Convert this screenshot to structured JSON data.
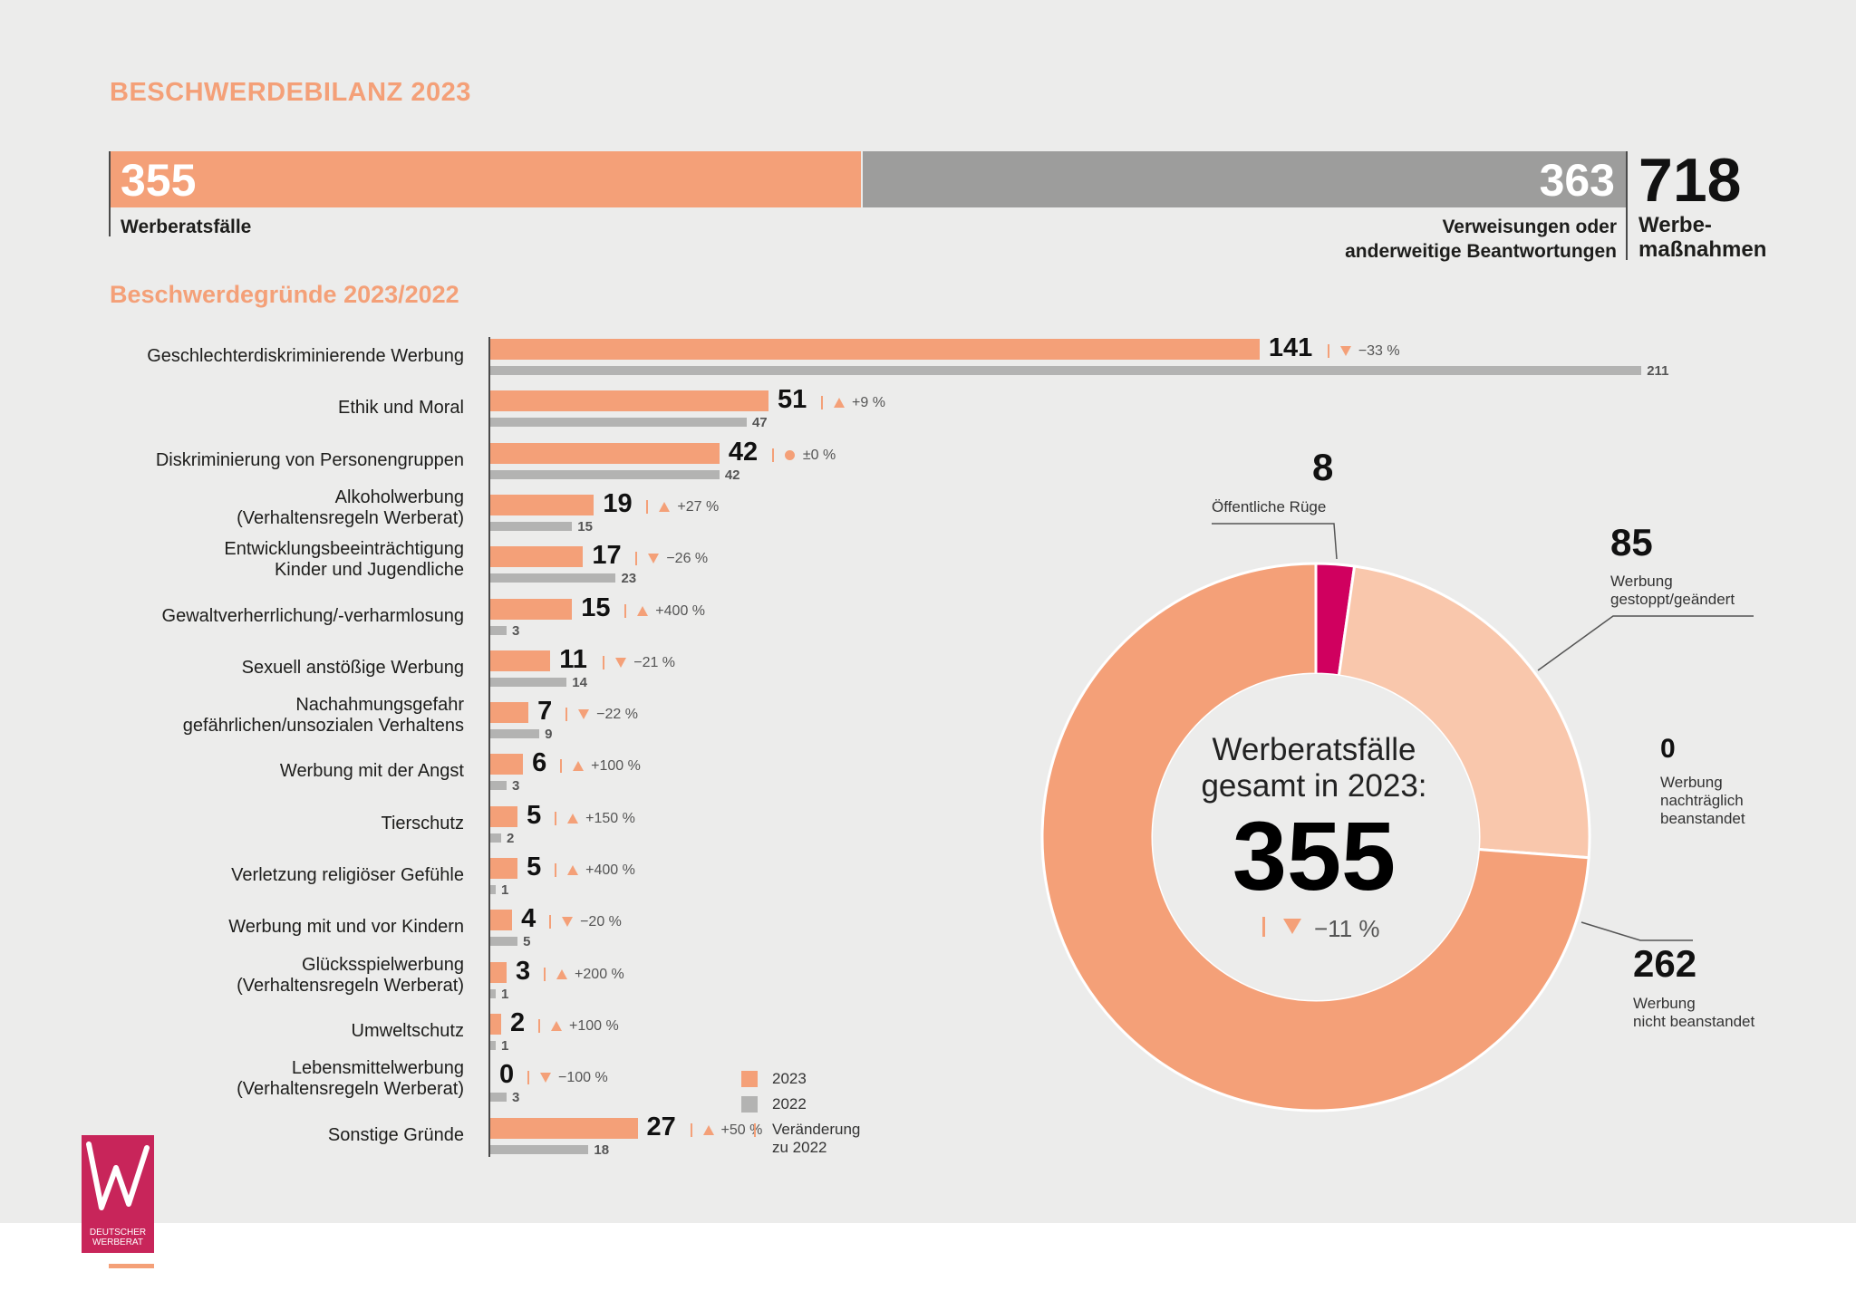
{
  "title": "BESCHWERDEBILANZ 2023",
  "totals": {
    "werberat_value": "355",
    "werberat_label": "Werberatsfälle",
    "verweisungen_value": "363",
    "verweisungen_label": "Verweisungen oder\nanderweitige Beantwortungen",
    "total_value": "718",
    "total_label": "Werbe-\nmaßnahmen"
  },
  "colors": {
    "accent": "#f4a078",
    "grey": "#b3b3b2",
    "dark_grey": "#9d9d9c",
    "magenta": "#d0005f",
    "light_orange": "#f9c7ac"
  },
  "chart_data": [
    {
      "type": "bar",
      "title": "Beschwerdegründe 2023/2022",
      "categories": [
        "Geschlechterdiskriminierende Werbung",
        "Ethik und Moral",
        "Diskriminierung von Personengruppen",
        "Alkoholwerbung\n(Verhaltensregeln Werberat)",
        "Entwicklungsbeeinträchtigung\nKinder und Jugendliche",
        "Gewaltverherrlichung/-verharmlosung",
        "Sexuell anstößige Werbung",
        "Nachahmungsgefahr\ngefährlichen/unsozialen Verhaltens",
        "Werbung mit der Angst",
        "Tierschutz",
        "Verletzung religiöser Gefühle",
        "Werbung mit und vor Kindern",
        "Glücksspielwerbung\n(Verhaltensregeln Werberat)",
        "Umweltschutz",
        "Lebensmittelwerbung\n(Verhaltensregeln Werberat)",
        "Sonstige Gründe"
      ],
      "series": [
        {
          "name": "2023",
          "values": [
            141,
            51,
            42,
            19,
            17,
            15,
            11,
            7,
            6,
            5,
            5,
            4,
            3,
            2,
            0,
            27
          ]
        },
        {
          "name": "2022",
          "values": [
            211,
            47,
            42,
            15,
            23,
            3,
            14,
            9,
            3,
            2,
            1,
            5,
            1,
            1,
            3,
            18
          ]
        }
      ],
      "changes": [
        "−33 %",
        "+9 %",
        "±0 %",
        "+27 %",
        "−26 %",
        "+400 %",
        "−21 %",
        "−22 %",
        "+100 %",
        "+150 %",
        "+400 %",
        "−20 %",
        "+200 %",
        "+100 %",
        "−100 %",
        "+50 %"
      ],
      "change_dirs": [
        "down",
        "up",
        "flat",
        "up",
        "down",
        "up",
        "down",
        "down",
        "up",
        "up",
        "up",
        "down",
        "up",
        "up",
        "down",
        "up"
      ],
      "legend": [
        "2023",
        "2022",
        "Veränderung\nzu 2022"
      ]
    },
    {
      "type": "pie",
      "title": "Werberatsfälle\ngesamt in 2023:",
      "total": 355,
      "total_change": "−11 %",
      "slices": [
        {
          "label": "Öffentliche Rüge",
          "value": 8
        },
        {
          "label": "Werbung\ngestoppt/geändert",
          "value": 85
        },
        {
          "label": "Werbung\nnachträglich\nbeanstandet",
          "value": 0
        },
        {
          "label": "Werbung\nnicht beanstandet",
          "value": 262
        }
      ]
    }
  ],
  "logo": {
    "text": "DEUTSCHER\nWERBERAT"
  }
}
